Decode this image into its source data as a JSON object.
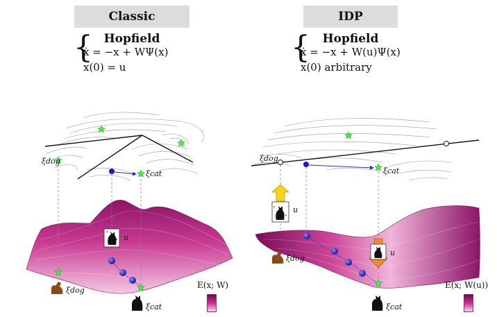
{
  "left": {
    "title": "Classic Hopfield",
    "eq_line1": "ẋ = −x + WΨ(x)",
    "eq_line2": "x(0) = u",
    "label_dog": "ξdog",
    "label_cat": "ξcat",
    "label_u": "u",
    "legend_label": "E(x; W)"
  },
  "right": {
    "title": "IDP Hopfield",
    "eq_line1": "ẋ = −x + W(u)Ψ(x)",
    "eq_line2": "x(0)  arbitrary",
    "label_dog_top": "ξdog",
    "label_cat_top": "ξcat",
    "label_dog": "ξdog",
    "label_cat": "ξcat",
    "label_u": "u",
    "legend_label": "E(x; W(u))"
  },
  "colors": {
    "surface_dark": "#8c1467",
    "surface_mid": "#c83a92",
    "surface_light": "#f2bfe0",
    "attractor_green": "#3cf23c",
    "state_blue": "#1a1acc",
    "arrow_yellow": "#f5d21e",
    "arrow_orange": "#f08c28"
  }
}
